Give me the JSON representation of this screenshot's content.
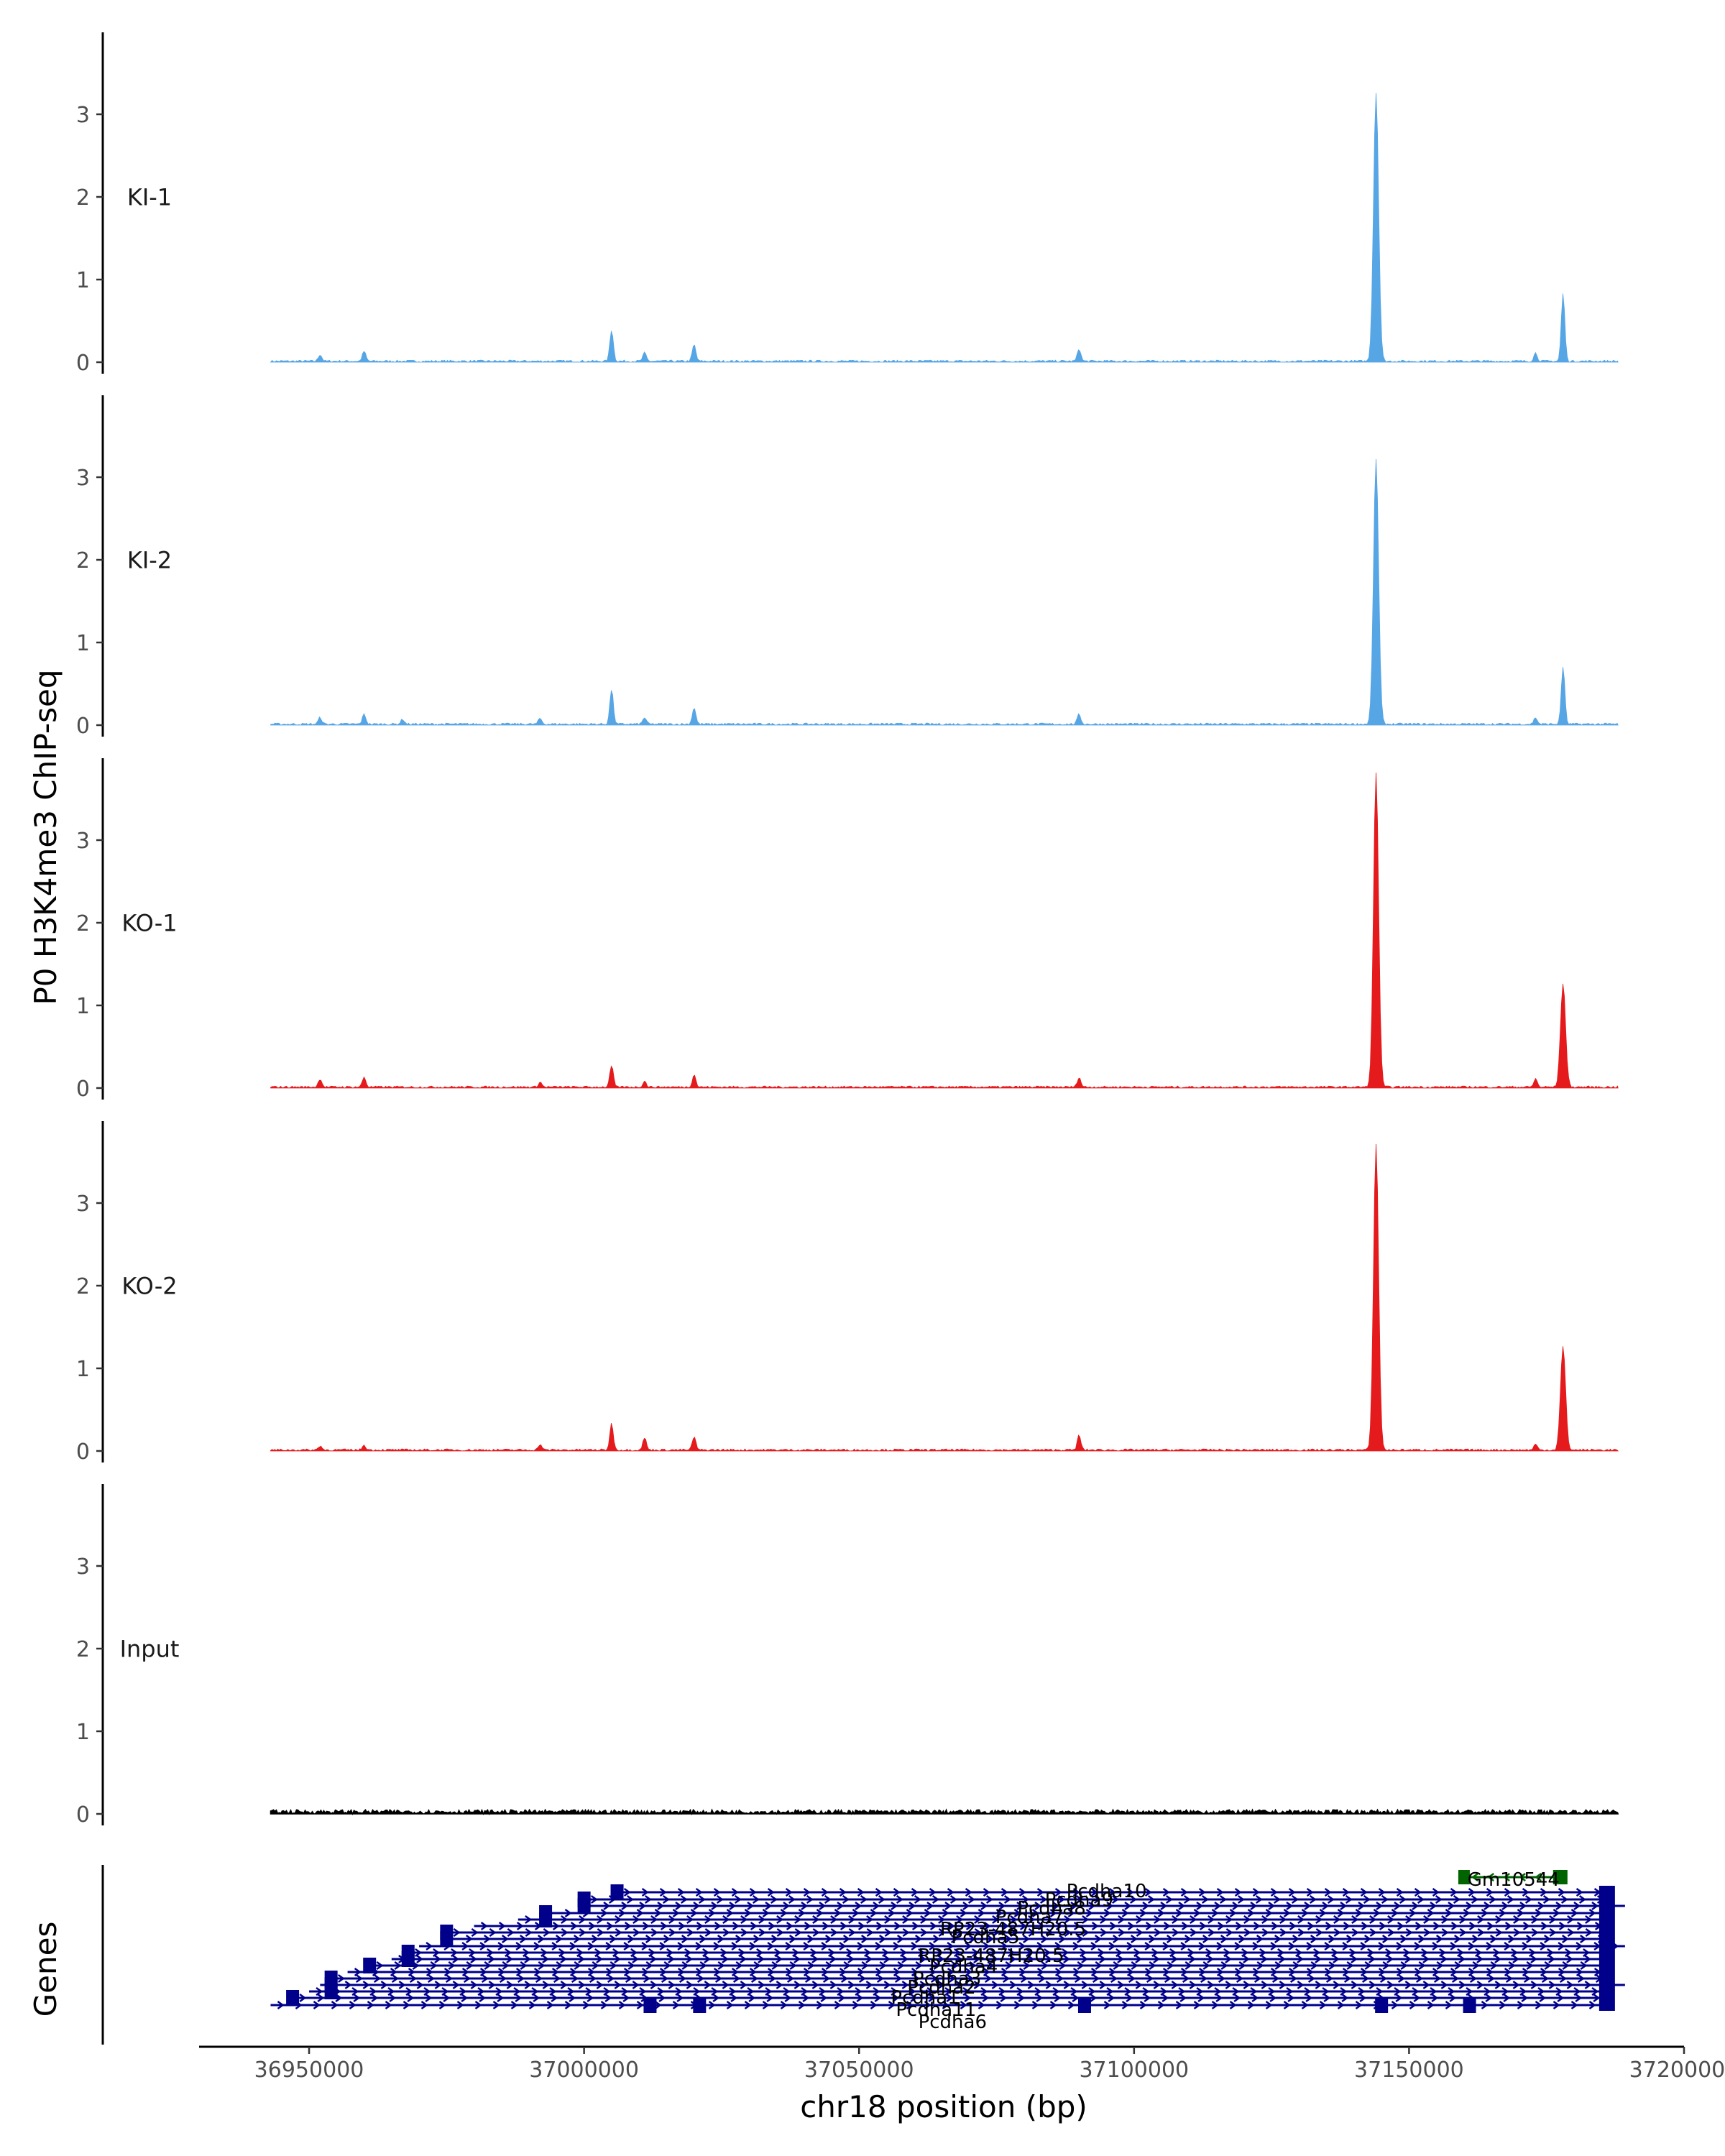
{
  "chart_data": {
    "type": "area",
    "ylabel": "P0 H3K4me3 ChIP-seq",
    "xlabel": "chr18 position (bp)",
    "genes_label": "Genes",
    "xlim": [
      36930000,
      37200000
    ],
    "ylim": [
      0,
      4
    ],
    "y_ticks": [
      0,
      1,
      2,
      3
    ],
    "x_ticks": [
      36950000,
      37000000,
      37050000,
      37100000,
      37150000,
      37200000
    ],
    "x_tick_labels": [
      "36950000",
      "37000000",
      "37050000",
      "37100000",
      "37150000",
      "37200000"
    ],
    "signal_range": [
      36943000,
      37188000
    ],
    "tracks": [
      {
        "name": "KI-1",
        "color": "#56a5e5",
        "peaks": [
          {
            "x": 36952000,
            "y": 0.08
          },
          {
            "x": 36960000,
            "y": 0.12
          },
          {
            "x": 37005000,
            "y": 0.38
          },
          {
            "x": 37011000,
            "y": 0.1
          },
          {
            "x": 37020000,
            "y": 0.2
          },
          {
            "x": 37090000,
            "y": 0.15
          },
          {
            "x": 37144000,
            "y": 3.25
          },
          {
            "x": 37173000,
            "y": 0.1
          },
          {
            "x": 37178000,
            "y": 0.82
          }
        ]
      },
      {
        "name": "KI-2",
        "color": "#56a5e5",
        "peaks": [
          {
            "x": 36952000,
            "y": 0.08
          },
          {
            "x": 36960000,
            "y": 0.12
          },
          {
            "x": 36967000,
            "y": 0.06
          },
          {
            "x": 36992000,
            "y": 0.07
          },
          {
            "x": 37005000,
            "y": 0.42
          },
          {
            "x": 37011000,
            "y": 0.08
          },
          {
            "x": 37020000,
            "y": 0.2
          },
          {
            "x": 37090000,
            "y": 0.12
          },
          {
            "x": 37144000,
            "y": 3.2
          },
          {
            "x": 37173000,
            "y": 0.08
          },
          {
            "x": 37178000,
            "y": 0.7
          }
        ]
      },
      {
        "name": "KO-1",
        "color": "#e41a1c",
        "peaks": [
          {
            "x": 36952000,
            "y": 0.1
          },
          {
            "x": 36960000,
            "y": 0.12
          },
          {
            "x": 36992000,
            "y": 0.06
          },
          {
            "x": 37005000,
            "y": 0.26
          },
          {
            "x": 37011000,
            "y": 0.07
          },
          {
            "x": 37020000,
            "y": 0.15
          },
          {
            "x": 37090000,
            "y": 0.12
          },
          {
            "x": 37144000,
            "y": 3.8
          },
          {
            "x": 37173000,
            "y": 0.1
          },
          {
            "x": 37178000,
            "y": 1.25
          }
        ]
      },
      {
        "name": "KO-2",
        "color": "#e41a1c",
        "peaks": [
          {
            "x": 36952000,
            "y": 0.05
          },
          {
            "x": 36960000,
            "y": 0.06
          },
          {
            "x": 36992000,
            "y": 0.07
          },
          {
            "x": 37005000,
            "y": 0.32
          },
          {
            "x": 37011000,
            "y": 0.15
          },
          {
            "x": 37020000,
            "y": 0.16
          },
          {
            "x": 37090000,
            "y": 0.18
          },
          {
            "x": 37144000,
            "y": 3.7
          },
          {
            "x": 37173000,
            "y": 0.07
          },
          {
            "x": 37178000,
            "y": 1.25
          }
        ]
      },
      {
        "name": "Input",
        "color": "#000000",
        "peaks": []
      }
    ],
    "genes": {
      "colors": {
        "forward": "#00008b",
        "reverse": "#006400"
      },
      "labels": [
        "Gm10544",
        "Pcdha10",
        "Pcdha9",
        "Pcdha8",
        "Pcdha7",
        "RP23-487H20.5",
        "Pcdha5",
        "RP23-487H20.5",
        "Pcdha4",
        "Pcdha3",
        "Pcdha2",
        "Pcdha1",
        "Pcdha11",
        "Pcdha6"
      ]
    }
  }
}
